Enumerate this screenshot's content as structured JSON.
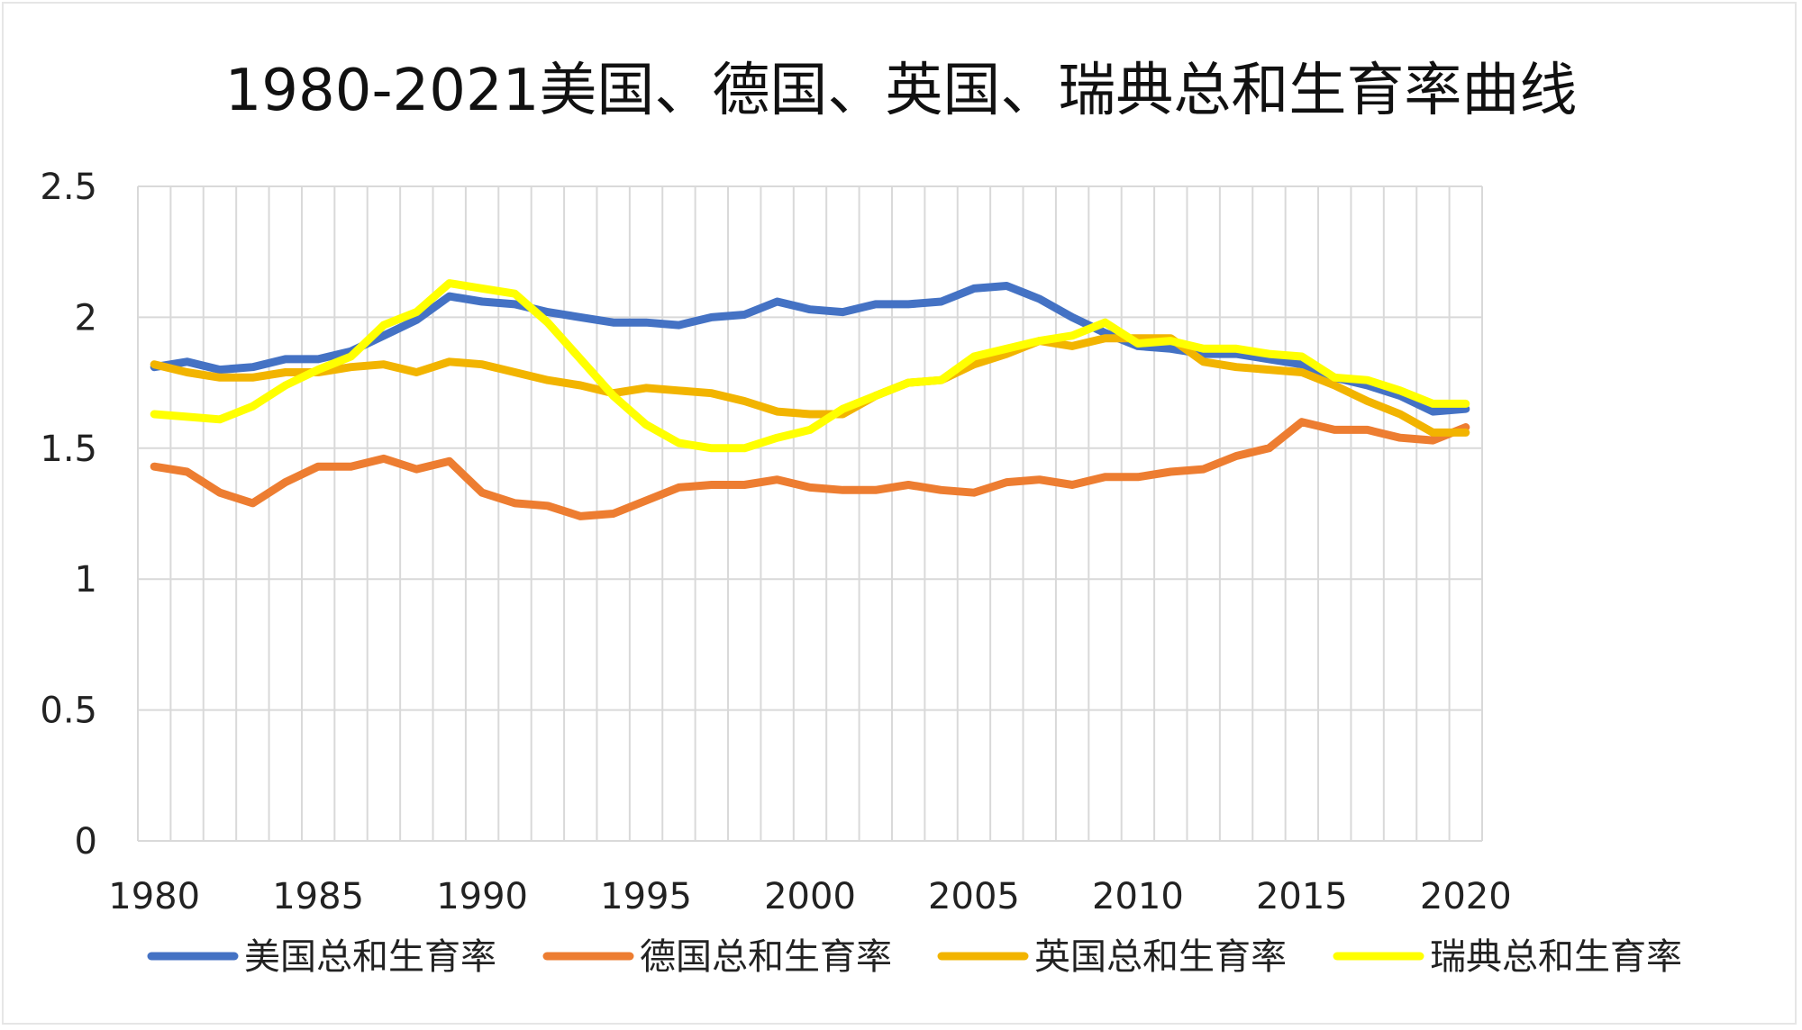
{
  "chart_data": {
    "type": "line",
    "title": "1980-2021美国、德国、英国、瑞典总和生育率曲线",
    "xlabel": "",
    "ylabel": "",
    "x": [
      1980,
      1981,
      1982,
      1983,
      1984,
      1985,
      1986,
      1987,
      1988,
      1989,
      1990,
      1991,
      1992,
      1993,
      1994,
      1995,
      1996,
      1997,
      1998,
      1999,
      2000,
      2001,
      2002,
      2003,
      2004,
      2005,
      2006,
      2007,
      2008,
      2009,
      2010,
      2011,
      2012,
      2013,
      2014,
      2015,
      2016,
      2017,
      2018,
      2019,
      2020
    ],
    "xticks": [
      "1980",
      "1985",
      "1990",
      "1995",
      "2000",
      "2005",
      "2010",
      "2015",
      "2020"
    ],
    "ylim": [
      0,
      2.5
    ],
    "yticks": [
      "0",
      "0.5",
      "1",
      "1.5",
      "2",
      "2.5"
    ],
    "grid": true,
    "legend_position": "bottom",
    "series": [
      {
        "name": "美国总和生育率",
        "color": "#4472C4",
        "values": [
          1.81,
          1.83,
          1.8,
          1.81,
          1.84,
          1.84,
          1.87,
          1.93,
          1.99,
          2.08,
          2.06,
          2.05,
          2.02,
          2.0,
          1.98,
          1.98,
          1.97,
          2.0,
          2.01,
          2.06,
          2.03,
          2.02,
          2.05,
          2.05,
          2.06,
          2.11,
          2.12,
          2.07,
          2.0,
          1.94,
          1.89,
          1.88,
          1.86,
          1.86,
          1.84,
          1.82,
          1.77,
          1.74,
          1.7,
          1.64,
          1.65
        ]
      },
      {
        "name": "德国总和生育率",
        "color": "#ED7D31",
        "values": [
          1.43,
          1.41,
          1.33,
          1.29,
          1.37,
          1.43,
          1.43,
          1.46,
          1.42,
          1.45,
          1.33,
          1.29,
          1.28,
          1.24,
          1.25,
          1.3,
          1.35,
          1.36,
          1.36,
          1.38,
          1.35,
          1.34,
          1.34,
          1.36,
          1.34,
          1.33,
          1.37,
          1.38,
          1.36,
          1.39,
          1.39,
          1.41,
          1.42,
          1.47,
          1.5,
          1.6,
          1.57,
          1.57,
          1.54,
          1.53,
          1.58
        ]
      },
      {
        "name": "英国总和生育率",
        "color": "#F2B400",
        "values": [
          1.82,
          1.79,
          1.77,
          1.77,
          1.79,
          1.79,
          1.81,
          1.82,
          1.79,
          1.83,
          1.82,
          1.79,
          1.76,
          1.74,
          1.71,
          1.73,
          1.72,
          1.71,
          1.68,
          1.64,
          1.63,
          1.63,
          1.7,
          1.75,
          1.76,
          1.82,
          1.86,
          1.91,
          1.89,
          1.92,
          1.92,
          1.92,
          1.83,
          1.81,
          1.8,
          1.79,
          1.74,
          1.68,
          1.63,
          1.56,
          1.56
        ]
      },
      {
        "name": "瑞典总和生育率",
        "color": "#FFFF00",
        "values": [
          1.63,
          1.62,
          1.61,
          1.66,
          1.74,
          1.8,
          1.85,
          1.97,
          2.02,
          2.13,
          2.11,
          2.09,
          1.98,
          1.84,
          1.7,
          1.59,
          1.52,
          1.5,
          1.5,
          1.54,
          1.57,
          1.65,
          1.7,
          1.75,
          1.76,
          1.85,
          1.88,
          1.91,
          1.93,
          1.98,
          1.9,
          1.91,
          1.88,
          1.88,
          1.86,
          1.85,
          1.77,
          1.76,
          1.72,
          1.67,
          1.67
        ]
      }
    ]
  }
}
